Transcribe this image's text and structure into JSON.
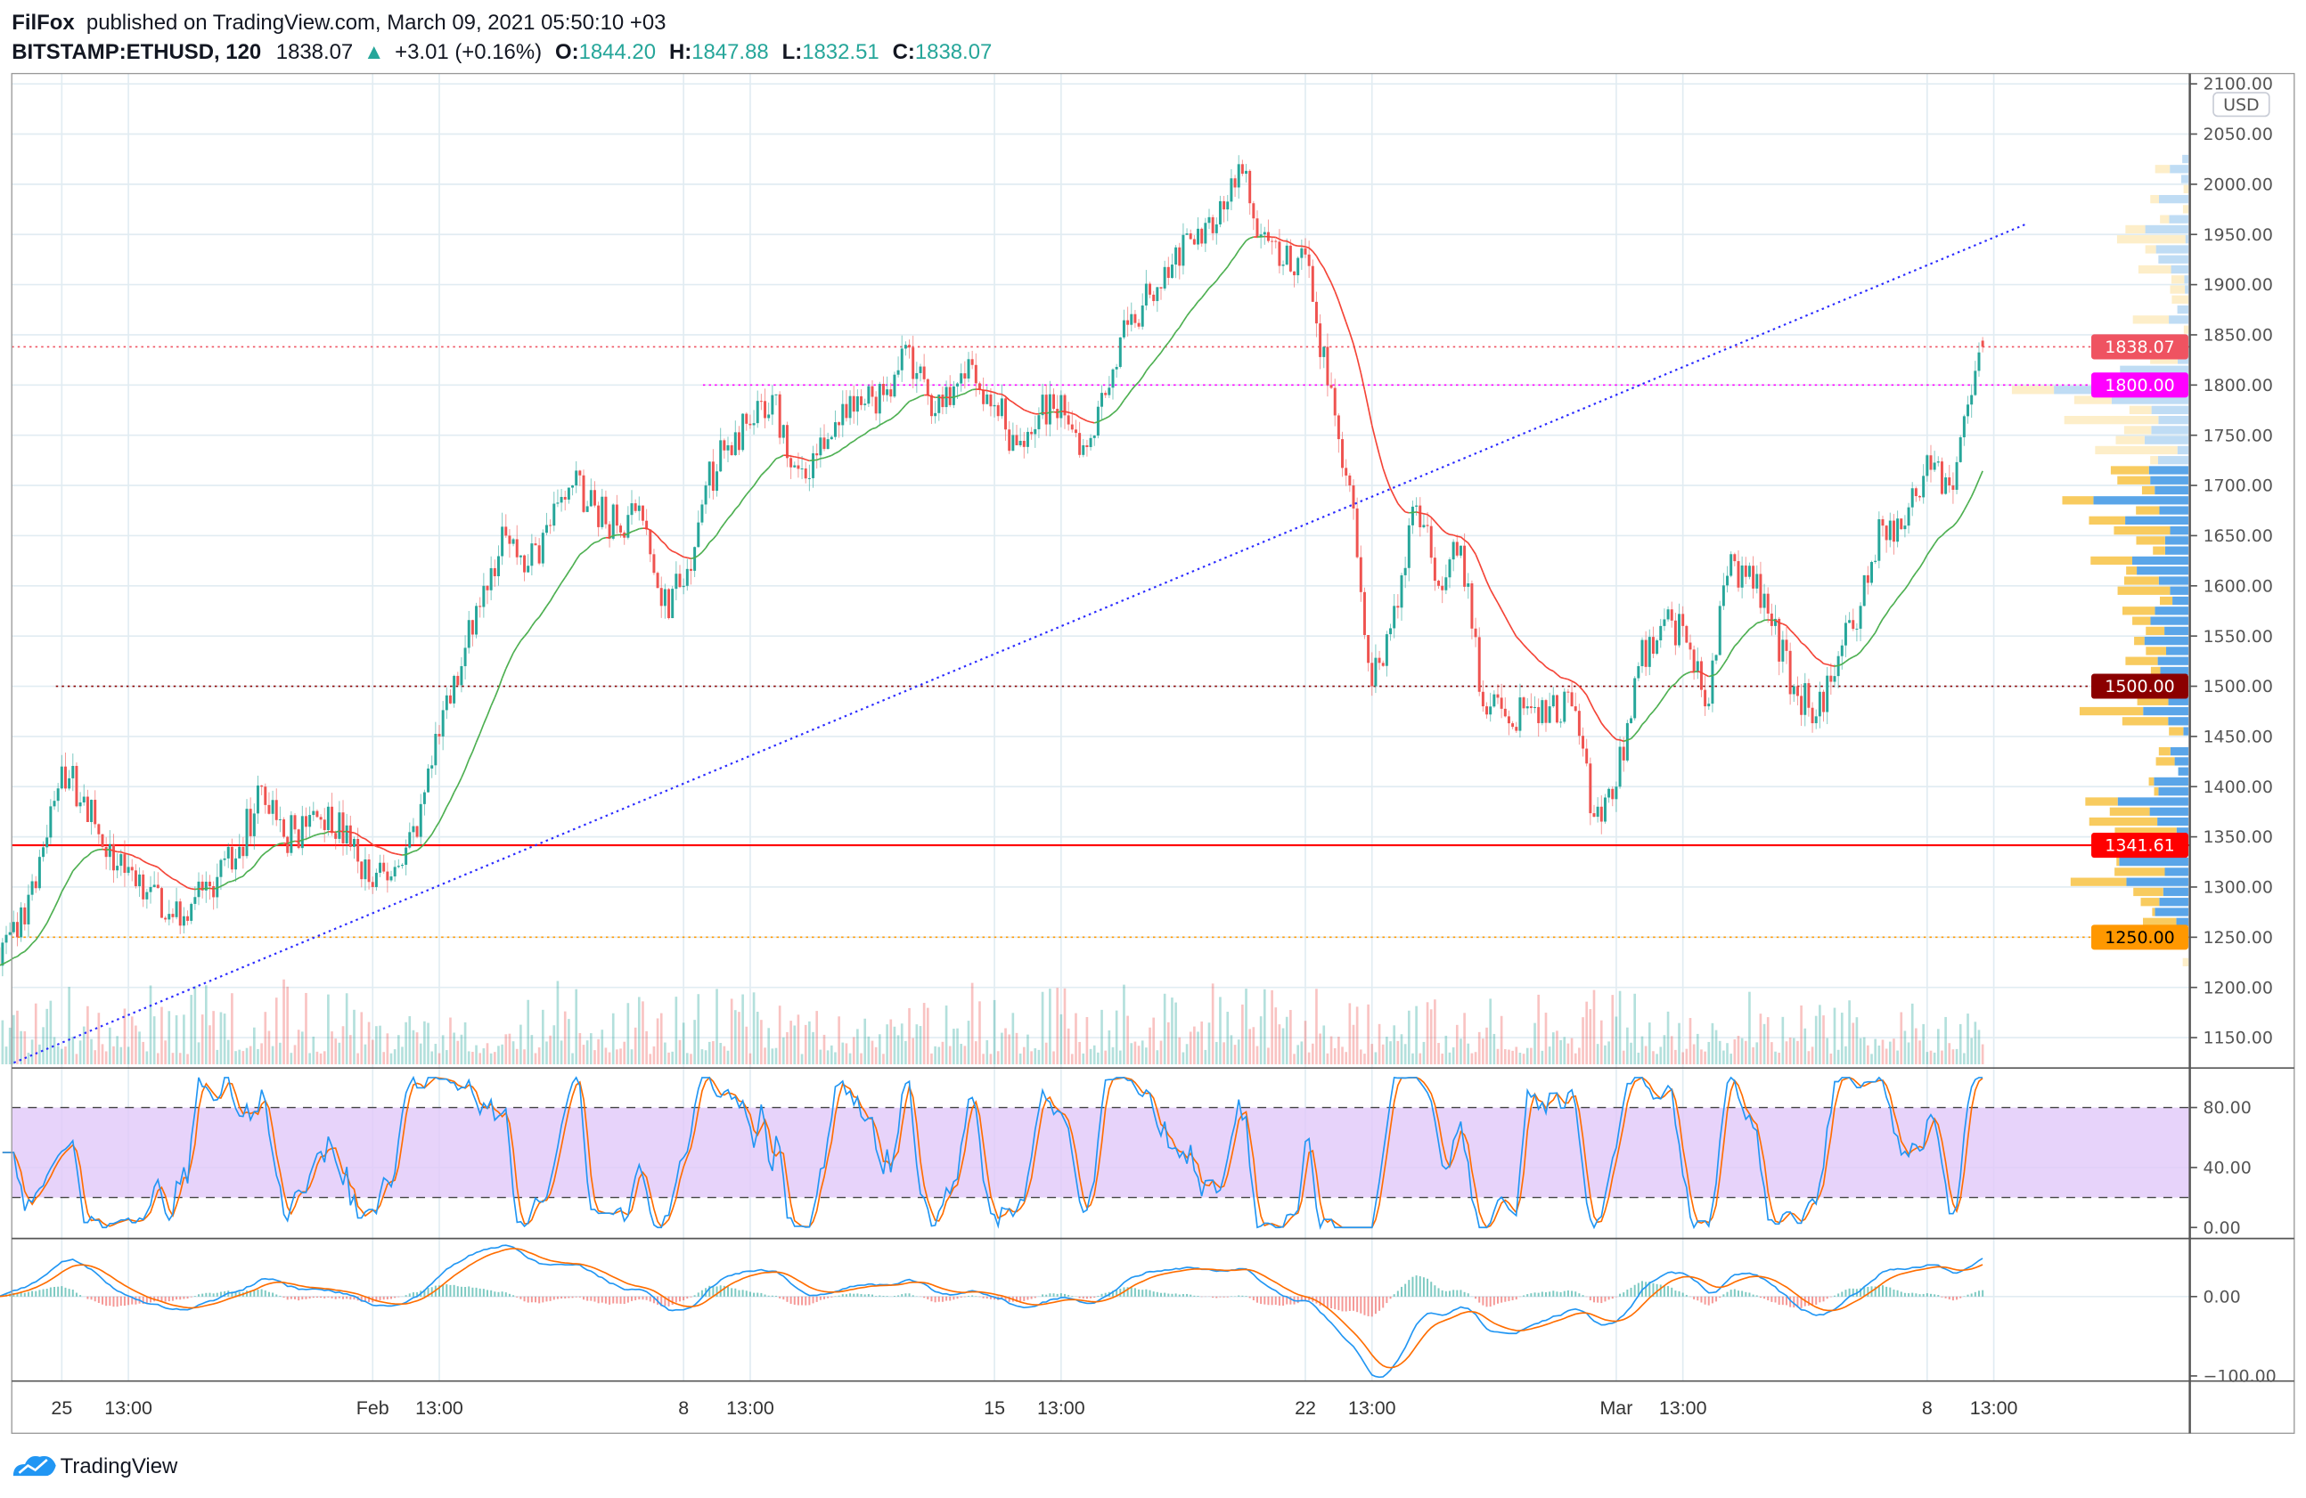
{
  "header": {
    "author": "FilFox",
    "published": "published on TradingView.com, March 09, 2021 05:50:10 +03",
    "symbol": "BITSTAMP:ETHUSD, 120",
    "last": "1838.07",
    "change": "+3.01 (+0.16%)",
    "o_label": "O:",
    "o": "1844.20",
    "h_label": "H:",
    "h": "1847.88",
    "l_label": "L:",
    "l": "1832.51",
    "c_label": "C:",
    "c": "1838.07"
  },
  "currency_label": "USD",
  "price_axis": [
    "2100.00",
    "2050.00",
    "2000.00",
    "1950.00",
    "1900.00",
    "1850.00",
    "1800.00",
    "1750.00",
    "1700.00",
    "1650.00",
    "1600.00",
    "1550.00",
    "1500.00",
    "1450.00",
    "1400.00",
    "1350.00",
    "1300.00",
    "1250.00",
    "1200.00",
    "1150.00"
  ],
  "price_labels": [
    {
      "text": "1838.07",
      "value": 1838.07,
      "color": "#ef5361",
      "line": "dotted"
    },
    {
      "text": "1800.00",
      "value": 1800,
      "color": "#ff00ff",
      "line": "dotted"
    },
    {
      "text": "1500.00",
      "value": 1500,
      "color": "#8b0000",
      "line": "dotted"
    },
    {
      "text": "1341.61",
      "value": 1341.61,
      "color": "#ff0000",
      "line": "solid"
    },
    {
      "text": "1250.00",
      "value": 1250,
      "color": "#ff9800",
      "line": "dotted"
    }
  ],
  "stoch_axis": [
    "80.00",
    "40.00",
    "0.00"
  ],
  "macd_axis": [
    "0.00",
    "−100.00"
  ],
  "time_axis": [
    "25",
    "13:00",
    "Feb",
    "13:00",
    "8",
    "13:00",
    "15",
    "13:00",
    "22",
    "13:00",
    "Mar",
    "13:00",
    "8",
    "13:00"
  ],
  "brand": "TradingView",
  "colors": {
    "up": "#26a69a",
    "down": "#ef5350",
    "ma_up": "#4caf50",
    "ma_down": "#f44336",
    "trendline": "#2b2bff",
    "stoch_band": "#e1c8f9",
    "k": "#2196f3",
    "d": "#ff6d00"
  },
  "chart_data": {
    "type": "candlestick",
    "title": "",
    "interval": "120",
    "ylim": [
      1120,
      2110
    ],
    "grid": true,
    "x": [
      "Jan 24 00:00",
      "Jan 24 12:00",
      "Jan 25 00:00",
      "Jan 25 12:00",
      "Jan 26 00:00",
      "Jan 26 12:00",
      "Jan 27 00:00",
      "Jan 27 12:00",
      "Jan 28 00:00",
      "Jan 28 12:00",
      "Jan 29 00:00",
      "Jan 29 12:00",
      "Jan 30 00:00",
      "Jan 30 12:00",
      "Jan 31 00:00",
      "Jan 31 12:00",
      "Feb 01 00:00",
      "Feb 01 12:00",
      "Feb 02 00:00",
      "Feb 02 12:00",
      "Feb 03 00:00",
      "Feb 03 12:00",
      "Feb 04 00:00",
      "Feb 04 12:00",
      "Feb 05 00:00",
      "Feb 05 12:00",
      "Feb 06 00:00",
      "Feb 06 12:00",
      "Feb 07 00:00",
      "Feb 07 12:00",
      "Feb 08 00:00",
      "Feb 08 12:00",
      "Feb 09 00:00",
      "Feb 09 12:00",
      "Feb 10 00:00",
      "Feb 10 12:00",
      "Feb 11 00:00",
      "Feb 11 12:00",
      "Feb 12 00:00",
      "Feb 12 12:00",
      "Feb 13 00:00",
      "Feb 13 12:00",
      "Feb 14 00:00",
      "Feb 14 12:00",
      "Feb 15 00:00",
      "Feb 15 12:00",
      "Feb 16 00:00",
      "Feb 16 12:00",
      "Feb 17 00:00",
      "Feb 17 12:00",
      "Feb 18 00:00",
      "Feb 18 12:00",
      "Feb 19 00:00",
      "Feb 19 12:00",
      "Feb 20 00:00",
      "Feb 20 12:00",
      "Feb 21 00:00",
      "Feb 21 12:00",
      "Feb 22 00:00",
      "Feb 22 12:00",
      "Feb 23 00:00",
      "Feb 23 12:00",
      "Feb 24 00:00",
      "Feb 24 12:00",
      "Feb 25 00:00",
      "Feb 25 12:00",
      "Feb 26 00:00",
      "Feb 26 12:00",
      "Feb 27 00:00",
      "Feb 27 12:00",
      "Feb 28 00:00",
      "Feb 28 12:00",
      "Mar 01 00:00",
      "Mar 01 12:00",
      "Mar 02 00:00",
      "Mar 02 12:00",
      "Mar 03 00:00",
      "Mar 03 12:00",
      "Mar 04 00:00",
      "Mar 04 12:00",
      "Mar 05 00:00",
      "Mar 05 12:00",
      "Mar 06 00:00",
      "Mar 06 12:00",
      "Mar 07 00:00",
      "Mar 07 12:00",
      "Mar 08 00:00",
      "Mar 08 12:00",
      "Mar 09 00:00",
      "Mar 09 05:00"
    ],
    "close": [
      1250,
      1330,
      1420,
      1390,
      1330,
      1320,
      1300,
      1270,
      1290,
      1310,
      1340,
      1400,
      1350,
      1360,
      1380,
      1340,
      1300,
      1320,
      1350,
      1450,
      1520,
      1600,
      1650,
      1620,
      1660,
      1700,
      1680,
      1660,
      1680,
      1580,
      1600,
      1700,
      1740,
      1760,
      1790,
      1720,
      1730,
      1760,
      1780,
      1790,
      1840,
      1790,
      1780,
      1820,
      1780,
      1740,
      1770,
      1790,
      1740,
      1790,
      1860,
      1890,
      1920,
      1940,
      1960,
      2020,
      1950,
      1920,
      1930,
      1800,
      1700,
      1500,
      1580,
      1680,
      1600,
      1640,
      1480,
      1470,
      1480,
      1480,
      1480,
      1370,
      1400,
      1520,
      1560,
      1560,
      1480,
      1610,
      1620,
      1560,
      1500,
      1470,
      1530,
      1580,
      1660,
      1660,
      1730,
      1700,
      1790,
      1838.07
    ],
    "last_ohlc": {
      "open": 1844.2,
      "high": 1847.88,
      "low": 1832.51,
      "close": 1838.07
    },
    "horizontal_levels": [
      1838.07,
      1800,
      1500,
      1341.61,
      1250
    ],
    "trendline": [
      {
        "x": "Jan 23 22:00",
        "y": 1125
      },
      {
        "x": "Mar 10 05:00",
        "y": 1960
      }
    ],
    "indicators": {
      "stoch_rsi": {
        "ylim": [
          0,
          100
        ],
        "bands": [
          20,
          80
        ]
      },
      "macd": {
        "ylim": [
          -110,
          60
        ]
      }
    }
  }
}
